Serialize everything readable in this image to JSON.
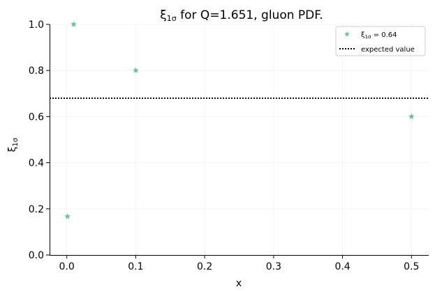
{
  "chart_data": {
    "type": "scatter",
    "title_main": "ξ",
    "title_sub": "1σ",
    "title_rest": " for Q=1.651, gluon PDF.",
    "xlabel": "x",
    "ylabel_main": "ξ",
    "ylabel_sub": "1σ",
    "xlim": [
      -0.025,
      0.525
    ],
    "ylim": [
      0.0,
      1.0
    ],
    "xticks": [
      0.0,
      0.1,
      0.2,
      0.3,
      0.4,
      0.5
    ],
    "xtick_labels": [
      "0.0",
      "0.1",
      "0.2",
      "0.3",
      "0.4",
      "0.5"
    ],
    "yticks": [
      0.0,
      0.2,
      0.4,
      0.6,
      0.8,
      1.0
    ],
    "ytick_labels": [
      "0.0",
      "0.2",
      "0.4",
      "0.6",
      "0.8",
      "1.0"
    ],
    "grid": true,
    "series": [
      {
        "name_main": "ξ",
        "name_sub": "1σ",
        "name_rest": " = 0.64",
        "marker": "star",
        "color": "#66c2a5",
        "points": [
          {
            "x": 0.001,
            "y": 0.167
          },
          {
            "x": 0.01,
            "y": 1.0
          },
          {
            "x": 0.1,
            "y": 0.8
          },
          {
            "x": 0.5,
            "y": 0.6
          }
        ]
      }
    ],
    "reference_line": {
      "label": "expected value",
      "y": 0.68,
      "style": "dotted",
      "color": "#000000"
    },
    "legend_position": "top-right"
  }
}
